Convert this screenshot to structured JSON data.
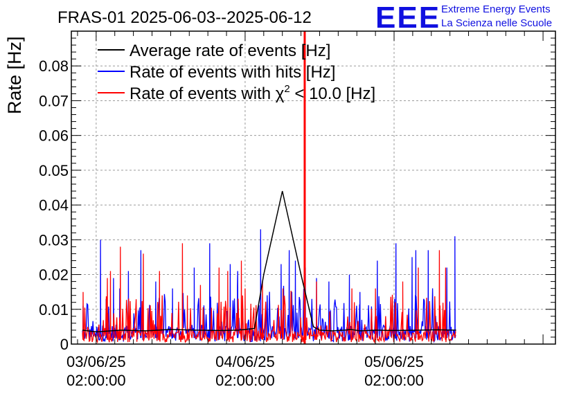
{
  "chart_data": {
    "type": "line",
    "title": "FRAS-01 2025-06-03--2025-06-12",
    "ylabel": "Rate [Hz]",
    "xlabel": "",
    "ylim": [
      0,
      0.09
    ],
    "yticks": [
      "0",
      "0.01",
      "0.02",
      "0.03",
      "0.04",
      "0.05",
      "0.06",
      "0.07",
      "0.08"
    ],
    "ytick_values": [
      0,
      0.01,
      0.02,
      0.03,
      0.04,
      0.05,
      0.06,
      0.07,
      0.08
    ],
    "xlim_hours": [
      -4,
      74
    ],
    "xticks": [
      {
        "hours": 0,
        "date": "03/06/25",
        "time": "02:00:00"
      },
      {
        "hours": 24,
        "date": "04/06/25",
        "time": "02:00:00"
      },
      {
        "hours": 48,
        "date": "05/06/25",
        "time": "02:00:00"
      }
    ],
    "legend": {
      "position": "top-left",
      "entries": [
        {
          "label": "Average rate of events [Hz]",
          "color": "#000000"
        },
        {
          "label": "Rate of events with hits [Hz]",
          "color": "#0000ff"
        },
        {
          "label_prefix": "Rate of events with ",
          "label_symbol": "χ",
          "label_sup": "2",
          "label_suffix": " < 10.0 [Hz]",
          "color": "#ff0000"
        }
      ]
    },
    "series": [
      {
        "name": "Average rate of events [Hz]",
        "color": "#000000",
        "x": [
          -2.2,
          0,
          4,
          8,
          12,
          16,
          20,
          23,
          25.5,
          27,
          30,
          33,
          35,
          36,
          38,
          40,
          41,
          42.5,
          45,
          48,
          52,
          55,
          58
        ],
        "y": [
          0.004,
          0.0035,
          0.004,
          0.0038,
          0.0042,
          0.004,
          0.0039,
          0.004,
          0.0045,
          0.02,
          0.044,
          0.02,
          0.005,
          0.004,
          0.0038,
          0.004,
          0.0042,
          0.0038,
          0.004,
          0.0039,
          0.004,
          0.0041,
          0.004
        ]
      },
      {
        "name": "Rate of events with hits [Hz]",
        "color": "#0000ff",
        "note": "noisy series; baseline ~0.003 with spikes",
        "x_range_hours": [
          -2.2,
          58
        ],
        "spikes": [
          [
            -2.1,
            0.011
          ],
          [
            0.7,
            0.03
          ],
          [
            1.6,
            0.013
          ],
          [
            2.8,
            0.019
          ],
          [
            3.8,
            0.016
          ],
          [
            5.2,
            0.021
          ],
          [
            7.2,
            0.027
          ],
          [
            9.6,
            0.018
          ],
          [
            12.3,
            0.016
          ],
          [
            15.8,
            0.022
          ],
          [
            18.3,
            0.029
          ],
          [
            21.6,
            0.023
          ],
          [
            22.8,
            0.021
          ],
          [
            26.5,
            0.033
          ],
          [
            29.8,
            0.023
          ],
          [
            31.1,
            0.027
          ],
          [
            32.1,
            0.024
          ],
          [
            33.7,
            0.022
          ],
          [
            35.5,
            0.019
          ],
          [
            37.5,
            0.018
          ],
          [
            40.8,
            0.02
          ],
          [
            42.5,
            0.015
          ],
          [
            45.3,
            0.024
          ],
          [
            48.3,
            0.029
          ],
          [
            50.9,
            0.025
          ],
          [
            51.5,
            0.027
          ],
          [
            53.5,
            0.027
          ],
          [
            56.5,
            0.022
          ],
          [
            57.8,
            0.031
          ]
        ]
      },
      {
        "name": "Rate of events with χ2 < 10.0 [Hz]",
        "color": "#ff0000",
        "note": "noisy series; baseline ~0.002 with spikes, one very high spike near 33.5 h",
        "x_range_hours": [
          -2.2,
          58
        ],
        "spikes": [
          [
            -2.1,
            0.015
          ],
          [
            1.8,
            0.019
          ],
          [
            2.3,
            0.021
          ],
          [
            3.9,
            0.028
          ],
          [
            7.6,
            0.026
          ],
          [
            10.2,
            0.021
          ],
          [
            13.9,
            0.029
          ],
          [
            14.7,
            0.014
          ],
          [
            16.8,
            0.017
          ],
          [
            19.8,
            0.022
          ],
          [
            21.2,
            0.021
          ],
          [
            23.4,
            0.024
          ],
          [
            24.0,
            0.016
          ],
          [
            26.8,
            0.018
          ],
          [
            30.1,
            0.016
          ],
          [
            33.6,
            0.09
          ],
          [
            35.5,
            0.018
          ],
          [
            41.2,
            0.016
          ],
          [
            45.0,
            0.016
          ],
          [
            49.4,
            0.018
          ],
          [
            51.9,
            0.022
          ],
          [
            55.3,
            0.027
          ],
          [
            56.3,
            0.022
          ]
        ]
      }
    ]
  },
  "logo": {
    "mark": "EEE",
    "line1": "Extreme Energy Events",
    "line2": "La Scienza nelle Scuole",
    "color": "#1010e0"
  }
}
